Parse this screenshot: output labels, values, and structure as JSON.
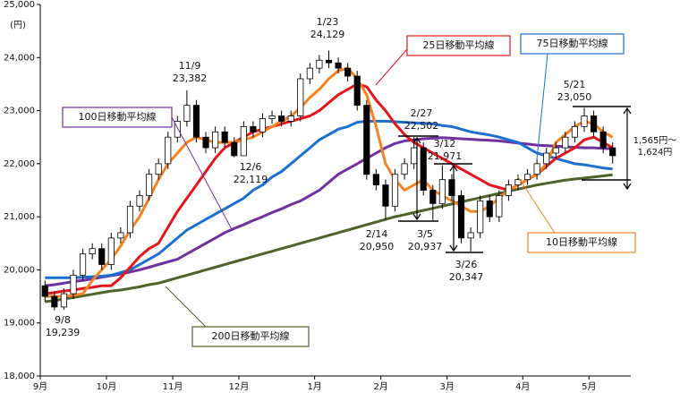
{
  "chart_data": {
    "type": "candlestick",
    "y_unit_label": "(円)",
    "categories": [
      "9月",
      null,
      null,
      null,
      null,
      null,
      null,
      "10月",
      null,
      null,
      null,
      null,
      null,
      null,
      "11月",
      null,
      null,
      null,
      null,
      null,
      null,
      "12月",
      null,
      null,
      null,
      null,
      null,
      null,
      null,
      "1月",
      null,
      null,
      null,
      null,
      null,
      null,
      "2月",
      null,
      null,
      null,
      null,
      null,
      null,
      "3月",
      null,
      null,
      null,
      null,
      null,
      null,
      null,
      "4月",
      null,
      null,
      null,
      null,
      null,
      null,
      "5月",
      null,
      null
    ],
    "open": [
      19700,
      19500,
      19300,
      19550,
      19900,
      20300,
      20400,
      20100,
      20600,
      20700,
      21200,
      21400,
      21800,
      22000,
      22500,
      22800,
      23100,
      22500,
      22300,
      22600,
      22400,
      22150,
      22700,
      22600,
      22850,
      22900,
      22800,
      22900,
      23600,
      23800,
      23950,
      23900,
      23800,
      23650,
      23100,
      21800,
      21600,
      21200,
      21800,
      22000,
      22300,
      21500,
      21250,
      21700,
      21400,
      20600,
      20700,
      21300,
      21000,
      21400,
      21600,
      21700,
      21800,
      22000,
      22200,
      22300,
      22500,
      22700,
      22900,
      22600,
      22300
    ],
    "high": [
      19800,
      19600,
      19650,
      20000,
      20400,
      20500,
      20500,
      20700,
      20800,
      21300,
      21500,
      21900,
      22100,
      22600,
      22900,
      23382,
      23200,
      22600,
      22700,
      22700,
      22500,
      22800,
      22800,
      22950,
      23000,
      23000,
      23000,
      23700,
      23900,
      24050,
      24129,
      24000,
      23900,
      23750,
      23200,
      21900,
      21700,
      21900,
      22100,
      22502,
      22400,
      21600,
      21971,
      21800,
      21500,
      20800,
      21400,
      21400,
      21500,
      21700,
      21800,
      21900,
      22100,
      22300,
      22400,
      22600,
      22800,
      23050,
      23000,
      22700,
      22400
    ],
    "low": [
      19400,
      19239,
      19250,
      19450,
      19800,
      20200,
      20000,
      20000,
      20500,
      20600,
      21100,
      21300,
      21700,
      21900,
      22400,
      22700,
      22400,
      22200,
      22200,
      22300,
      22119,
      22150,
      22500,
      22500,
      22750,
      22700,
      22700,
      22800,
      23500,
      23700,
      23800,
      23700,
      23550,
      23000,
      21700,
      21500,
      20950,
      21100,
      21700,
      21900,
      21400,
      20937,
      21150,
      21300,
      20500,
      20347,
      20600,
      20900,
      20900,
      21300,
      21500,
      21600,
      21700,
      21900,
      22100,
      22200,
      22400,
      22600,
      22500,
      22200,
      22000
    ],
    "close": [
      19500,
      19300,
      19550,
      19900,
      20300,
      20400,
      20100,
      20600,
      20700,
      21200,
      21400,
      21800,
      22000,
      22500,
      22800,
      23100,
      22500,
      22300,
      22600,
      22400,
      22150,
      22700,
      22600,
      22850,
      22900,
      22800,
      22900,
      23600,
      23800,
      23950,
      23900,
      23800,
      23650,
      23100,
      21800,
      21600,
      21200,
      21800,
      22000,
      22300,
      21500,
      21250,
      21700,
      21400,
      20600,
      20700,
      21300,
      21000,
      21400,
      21600,
      21700,
      21800,
      22000,
      22200,
      22300,
      22500,
      22700,
      22900,
      22600,
      22300,
      22150
    ],
    "up_color": "#ffffff",
    "down_color": "#000000",
    "series": [
      {
        "name": "25日移動平均線",
        "color": "#e8141c",
        "values": [
          19550,
          19570,
          19600,
          19620,
          19650,
          19670,
          19700,
          19700,
          19850,
          20050,
          20250,
          20400,
          20500,
          20800,
          21100,
          21350,
          21600,
          21850,
          22100,
          22300,
          22400,
          22500,
          22600,
          22650,
          22700,
          22750,
          22800,
          22850,
          22900,
          23000,
          23150,
          23300,
          23400,
          23500,
          23450,
          23200,
          23000,
          22750,
          22550,
          22400,
          22300,
          22200,
          22100,
          22000,
          21900,
          21800,
          21700,
          21600,
          21550,
          21500,
          21600,
          21700,
          21800,
          21950,
          22100,
          22200,
          22300,
          22450,
          22500,
          22400,
          22300
        ]
      },
      {
        "name": "75日移動平均線",
        "color": "#1a6fd0",
        "values": [
          19850,
          19850,
          19850,
          19850,
          19860,
          19870,
          19880,
          19900,
          19950,
          20000,
          20100,
          20200,
          20300,
          20450,
          20600,
          20750,
          20850,
          20950,
          21050,
          21150,
          21250,
          21350,
          21500,
          21600,
          21750,
          21850,
          22000,
          22150,
          22300,
          22450,
          22550,
          22650,
          22700,
          22780,
          22800,
          22800,
          22800,
          22790,
          22780,
          22770,
          22760,
          22750,
          22720,
          22700,
          22650,
          22600,
          22570,
          22540,
          22500,
          22450,
          22400,
          22300,
          22200,
          22150,
          22100,
          22050,
          22000,
          21980,
          21950,
          21920,
          21900
        ]
      },
      {
        "name": "100日移動平均線",
        "color": "#7030a0",
        "values": [
          19700,
          19720,
          19750,
          19780,
          19800,
          19830,
          19860,
          19890,
          19920,
          19960,
          20000,
          20050,
          20100,
          20150,
          20200,
          20300,
          20400,
          20500,
          20600,
          20700,
          20780,
          20850,
          20930,
          21000,
          21080,
          21150,
          21230,
          21300,
          21400,
          21500,
          21650,
          21800,
          21900,
          22000,
          22100,
          22200,
          22300,
          22380,
          22430,
          22450,
          22470,
          22480,
          22490,
          22480,
          22470,
          22460,
          22450,
          22440,
          22430,
          22410,
          22390,
          22370,
          22350,
          22340,
          22330,
          22320,
          22310,
          22300,
          22300,
          22290,
          22280
        ]
      },
      {
        "name": "10日移動平均線",
        "color": "#f58220",
        "values": [
          19500,
          19500,
          19500,
          19520,
          19550,
          19800,
          20000,
          20200,
          20450,
          20750,
          21000,
          21350,
          21700,
          22000,
          22200,
          22400,
          22500,
          22450,
          22400,
          22400,
          22400,
          22450,
          22500,
          22600,
          22700,
          22800,
          22900,
          23050,
          23250,
          23400,
          23600,
          23750,
          23800,
          23600,
          23300,
          22700,
          22000,
          21700,
          21500,
          21600,
          21700,
          21500,
          21400,
          21300,
          21200,
          21100,
          21100,
          21200,
          21350,
          21500,
          21600,
          21700,
          21800,
          22000,
          22400,
          22550,
          22700,
          22800,
          22750,
          22600,
          22500
        ]
      },
      {
        "name": "200日移動平均線",
        "color": "#4f6228",
        "values": [
          19400,
          19420,
          19450,
          19480,
          19510,
          19540,
          19570,
          19600,
          19620,
          19650,
          19680,
          19720,
          19750,
          19800,
          19850,
          19900,
          19950,
          20000,
          20050,
          20100,
          20150,
          20200,
          20250,
          20300,
          20350,
          20400,
          20450,
          20500,
          20550,
          20600,
          20650,
          20700,
          20750,
          20800,
          20850,
          20900,
          20950,
          21000,
          21040,
          21080,
          21120,
          21160,
          21200,
          21240,
          21280,
          21320,
          21360,
          21400,
          21440,
          21480,
          21520,
          21560,
          21600,
          21630,
          21660,
          21690,
          21710,
          21730,
          21750,
          21770,
          21790
        ]
      }
    ],
    "ylim": [
      18000,
      25000
    ],
    "yticks": [
      {
        "value": 18000,
        "label": "18,000"
      },
      {
        "value": 19000,
        "label": "19,000"
      },
      {
        "value": 20000,
        "label": "20,000"
      },
      {
        "value": 21000,
        "label": "21,000"
      },
      {
        "value": 22000,
        "label": "22,000"
      },
      {
        "value": 23000,
        "label": "23,000"
      },
      {
        "value": 24000,
        "label": "24,000"
      },
      {
        "value": 25000,
        "label": "25,000"
      }
    ],
    "annotations": [
      {
        "date": "9/8",
        "value": {
          "value": 19239,
          "label": "19,239"
        }
      },
      {
        "date": "11/9",
        "value": {
          "value": 23382,
          "label": "23,382"
        }
      },
      {
        "date": "12/6",
        "value": {
          "value": 22119,
          "label": "22,119"
        }
      },
      {
        "date": "1/23",
        "value": {
          "value": 24129,
          "label": "24,129"
        }
      },
      {
        "date": "2/14",
        "value": {
          "value": 20950,
          "label": "20,950"
        }
      },
      {
        "date": "2/27",
        "value": {
          "value": 22502,
          "label": "22,502"
        }
      },
      {
        "date": "3/5",
        "value": {
          "value": 20937,
          "label": "20,937"
        }
      },
      {
        "date": "3/12",
        "value": {
          "value": 21971,
          "label": "21,971"
        }
      },
      {
        "date": "3/26",
        "value": {
          "value": 20347,
          "label": "20,347"
        }
      },
      {
        "date": "5/21",
        "value": {
          "value": 23050,
          "label": "23,050"
        }
      }
    ],
    "range_note": [
      "1,565円～",
      "1,624円"
    ]
  }
}
